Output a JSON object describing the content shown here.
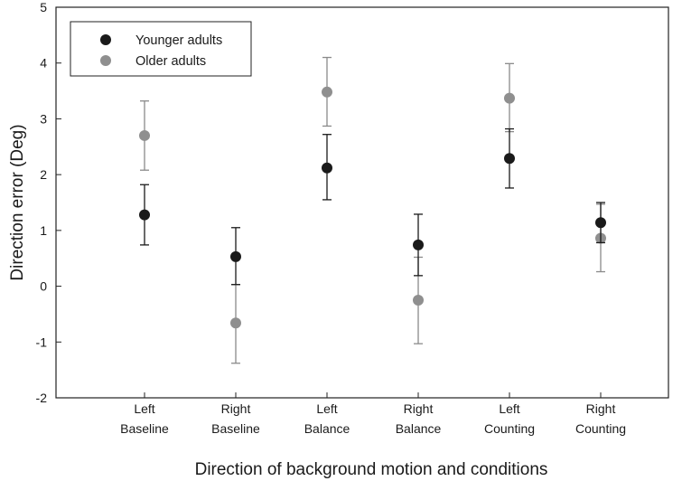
{
  "chart_data": {
    "type": "scatter",
    "xlabel": "Direction of background motion and conditions",
    "ylabel": "Direction error (Deg)",
    "ylim": [
      -2,
      5
    ],
    "yticks": [
      -2,
      -1,
      0,
      1,
      2,
      3,
      4,
      5
    ],
    "categories": [
      [
        "Left",
        "Baseline"
      ],
      [
        "Right",
        "Baseline"
      ],
      [
        "Left",
        "Balance"
      ],
      [
        "Right",
        "Balance"
      ],
      [
        "Left",
        "Counting"
      ],
      [
        "Right",
        "Counting"
      ]
    ],
    "legend_position": "top-left",
    "grid": false,
    "series": [
      {
        "name": "Younger adults",
        "color": "#1a1a1a",
        "values": [
          1.28,
          0.53,
          2.12,
          0.74,
          2.29,
          1.14
        ],
        "error_low": [
          0.74,
          0.03,
          1.55,
          0.19,
          1.76,
          0.78
        ],
        "error_high": [
          1.82,
          1.05,
          2.72,
          1.29,
          2.82,
          1.5
        ]
      },
      {
        "name": "Older adults",
        "color": "#8f8f8f",
        "values": [
          2.7,
          -0.66,
          3.48,
          -0.25,
          3.37,
          0.86
        ],
        "error_low": [
          2.08,
          -1.38,
          2.87,
          -1.03,
          2.77,
          0.26
        ],
        "error_high": [
          3.32,
          0.03,
          4.1,
          0.52,
          3.99,
          1.47
        ]
      }
    ]
  }
}
